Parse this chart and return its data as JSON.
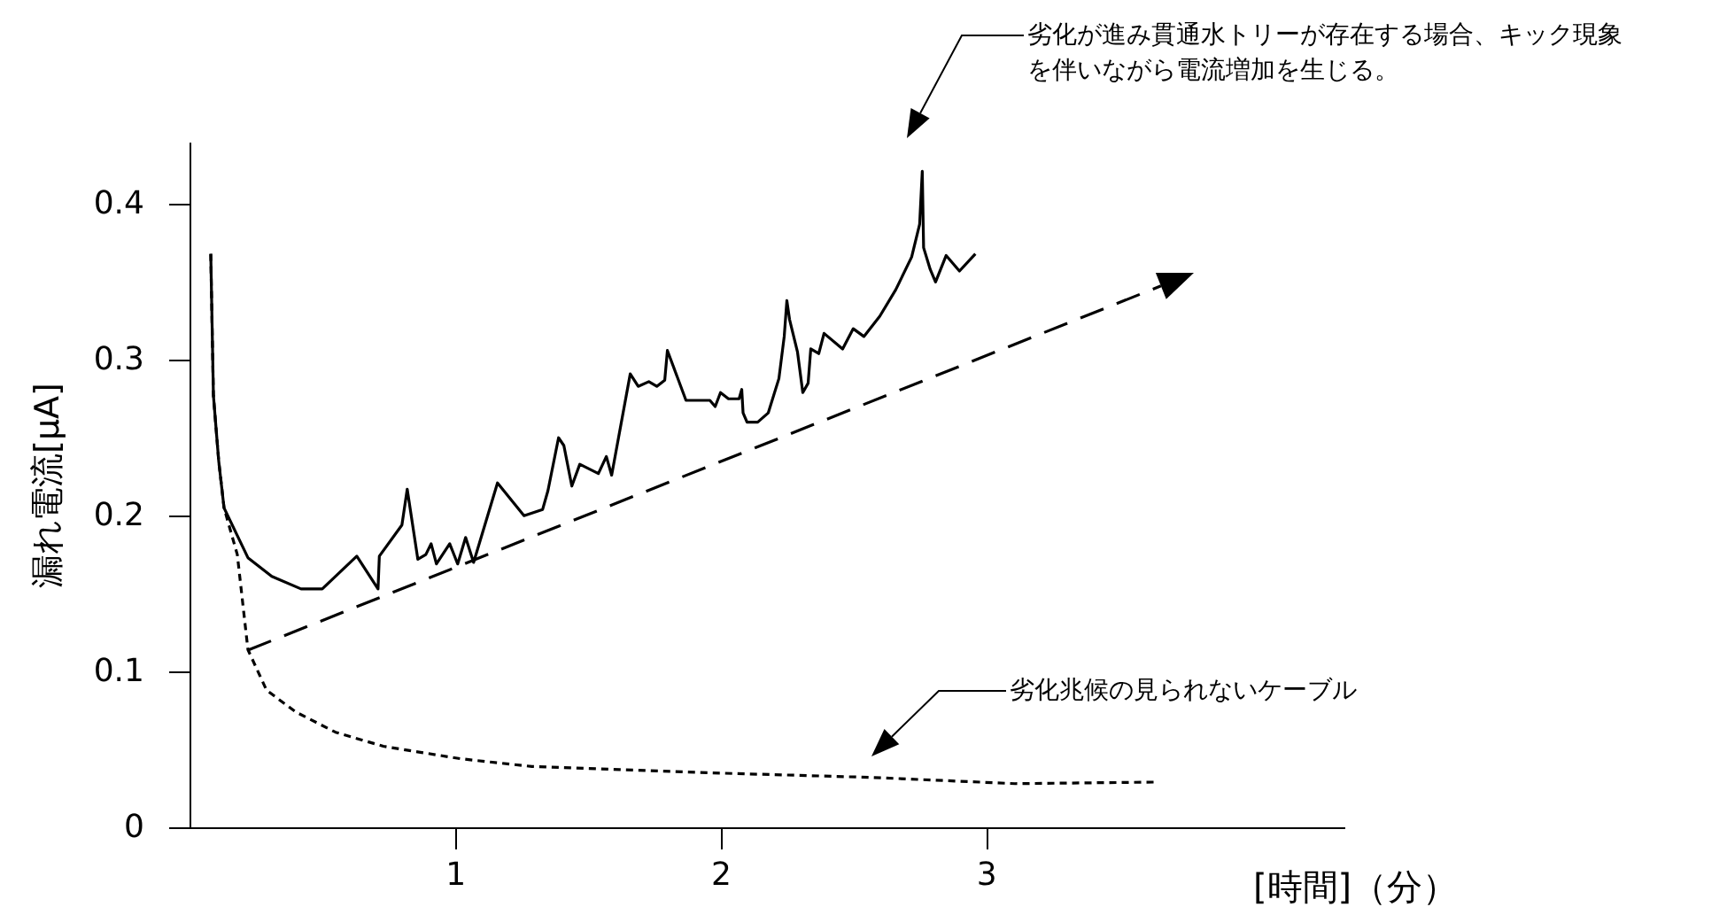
{
  "chart_data": {
    "type": "line",
    "xlabel": "[時間]（分）",
    "ylabel": "漏れ電流[μA]",
    "xlim": [
      0,
      4.35
    ],
    "ylim": [
      0,
      0.44
    ],
    "xticks": [
      1,
      2,
      3
    ],
    "yticks": [
      0,
      0.1,
      0.2,
      0.3,
      0.4
    ],
    "grid": false,
    "series": [
      {
        "type": "line",
        "line_style": "solid",
        "color": "#000000",
        "x": [
          0.08,
          0.09,
          0.11,
          0.13,
          0.22,
          0.31,
          0.42,
          0.5,
          0.63,
          0.71,
          0.715,
          0.8,
          0.82,
          0.86,
          0.89,
          0.91,
          0.93,
          0.98,
          1.01,
          1.04,
          1.07,
          1.16,
          1.26,
          1.33,
          1.35,
          1.39,
          1.41,
          1.44,
          1.47,
          1.54,
          1.57,
          1.59,
          1.66,
          1.69,
          1.73,
          1.76,
          1.79,
          1.8,
          1.87,
          1.96,
          1.98,
          2.0,
          2.03,
          2.07,
          2.08,
          2.085,
          2.1,
          2.14,
          2.18,
          2.22,
          2.24,
          2.25,
          2.26,
          2.29,
          2.31,
          2.33,
          2.34,
          2.37,
          2.39,
          2.46,
          2.5,
          2.54,
          2.6,
          2.66,
          2.72,
          2.75,
          2.76,
          2.765,
          2.79,
          2.81,
          2.85,
          2.9,
          2.96
        ],
        "values": [
          0.368,
          0.277,
          0.235,
          0.205,
          0.173,
          0.161,
          0.153,
          0.153,
          0.174,
          0.153,
          0.174,
          0.194,
          0.217,
          0.172,
          0.175,
          0.182,
          0.169,
          0.182,
          0.169,
          0.186,
          0.17,
          0.221,
          0.2,
          0.204,
          0.216,
          0.25,
          0.245,
          0.219,
          0.233,
          0.227,
          0.238,
          0.226,
          0.291,
          0.283,
          0.286,
          0.283,
          0.287,
          0.306,
          0.274,
          0.274,
          0.27,
          0.279,
          0.275,
          0.275,
          0.281,
          0.266,
          0.26,
          0.26,
          0.266,
          0.288,
          0.315,
          0.338,
          0.326,
          0.305,
          0.279,
          0.285,
          0.307,
          0.304,
          0.317,
          0.307,
          0.32,
          0.315,
          0.328,
          0.345,
          0.366,
          0.387,
          0.421,
          0.372,
          0.358,
          0.35,
          0.367,
          0.357,
          0.368
        ]
      },
      {
        "type": "line",
        "line_style": "dotted",
        "color": "#000000",
        "x": [
          0.08,
          0.09,
          0.11,
          0.13,
          0.18,
          0.22,
          0.29,
          0.4,
          0.55,
          0.73,
          1.02,
          1.29,
          1.62,
          1.95,
          2.57,
          3.11,
          3.64
        ],
        "values": [
          0.368,
          0.277,
          0.235,
          0.205,
          0.175,
          0.114,
          0.088,
          0.074,
          0.061,
          0.052,
          0.044,
          0.039,
          0.037,
          0.035,
          0.032,
          0.028,
          0.029
        ]
      }
    ],
    "annotations": [
      "劣化が進み貫通水トリーが存在する場合、キック現象を伴いながら電流増加を生じる。",
      "劣化兆候の見られないケーブル"
    ]
  }
}
